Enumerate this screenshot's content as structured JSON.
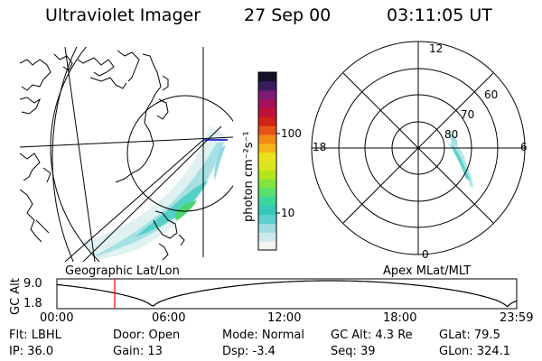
{
  "header": {
    "instrument": "Ultraviolet Imager",
    "date": "27 Sep 00",
    "time": "03:11:05 UT"
  },
  "left_panel": {
    "caption": "Geographic Lat/Lon"
  },
  "colorbar": {
    "unit_label": "photon cm⁻²s⁻¹",
    "tick_100": "100",
    "tick_10": "10",
    "colors": [
      "#f2f2f2",
      "#cfe8ee",
      "#9fdbe2",
      "#5ccfd0",
      "#33c9b5",
      "#3ad69b",
      "#57df6f",
      "#83e23e",
      "#b3e51f",
      "#d9e61c",
      "#ece21c",
      "#f6b51c",
      "#ee8a18",
      "#e45418",
      "#d22116",
      "#c0103c",
      "#a4115a",
      "#7c1a74",
      "#3a1c5e",
      "#151226"
    ]
  },
  "right_panel": {
    "caption": "Apex MLat/MLT",
    "mlt_12": "12",
    "mlt_18": "18",
    "mlt_6": "6",
    "mlt_0": "0",
    "lat_60": "60",
    "lat_70": "70",
    "lat_80": "80"
  },
  "altitude_plot": {
    "ylabel": "GC Alt",
    "y_top": "9.0",
    "y_bottom": "1.8",
    "x_ticks": [
      "00:00",
      "06:00",
      "12:00",
      "18:00",
      "23:59"
    ],
    "marker_color": "#ff0000"
  },
  "status": {
    "flt": "Flt: LBHL",
    "door": "Door: Open",
    "mode": "Mode: Normal",
    "gc_alt": "GC Alt: 4.3 Re",
    "glat": "GLat: 79.5",
    "ip": "IP: 36.0",
    "gain": "Gain: 13",
    "dsp": "Dsp:    -3.4",
    "seq": "Seq: 39",
    "glon": "GLon: 324.1"
  }
}
